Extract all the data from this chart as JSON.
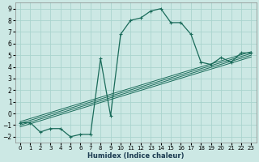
{
  "xlabel": "Humidex (Indice chaleur)",
  "background_color": "#cce8e4",
  "grid_color": "#aad4ce",
  "line_color": "#1a6b5a",
  "xlim": [
    -0.5,
    23.5
  ],
  "ylim": [
    -2.5,
    9.5
  ],
  "xticks": [
    0,
    1,
    2,
    3,
    4,
    5,
    6,
    7,
    8,
    9,
    10,
    11,
    12,
    13,
    14,
    15,
    16,
    17,
    18,
    19,
    20,
    21,
    22,
    23
  ],
  "yticks": [
    -2,
    -1,
    0,
    1,
    2,
    3,
    4,
    5,
    6,
    7,
    8,
    9
  ],
  "main_x": [
    0,
    1,
    2,
    3,
    4,
    5,
    6,
    7,
    8,
    9,
    10,
    11,
    12,
    13,
    14,
    15,
    16,
    17,
    18,
    19,
    20,
    21,
    22,
    23
  ],
  "main_y": [
    -0.8,
    -0.8,
    -1.6,
    -1.3,
    -1.3,
    -2.0,
    -1.8,
    -1.8,
    4.7,
    -0.2,
    6.8,
    8.0,
    8.2,
    8.8,
    9.0,
    7.8,
    7.8,
    6.8,
    4.4,
    4.2,
    4.8,
    4.4,
    5.2,
    5.2
  ],
  "diag_lines": [
    {
      "x": [
        0,
        23
      ],
      "y": [
        -1.0,
        5.0
      ]
    },
    {
      "x": [
        0,
        23
      ],
      "y": [
        -0.85,
        5.15
      ]
    },
    {
      "x": [
        0,
        23
      ],
      "y": [
        -0.7,
        5.3
      ]
    },
    {
      "x": [
        0,
        23
      ],
      "y": [
        -1.15,
        4.85
      ]
    }
  ]
}
